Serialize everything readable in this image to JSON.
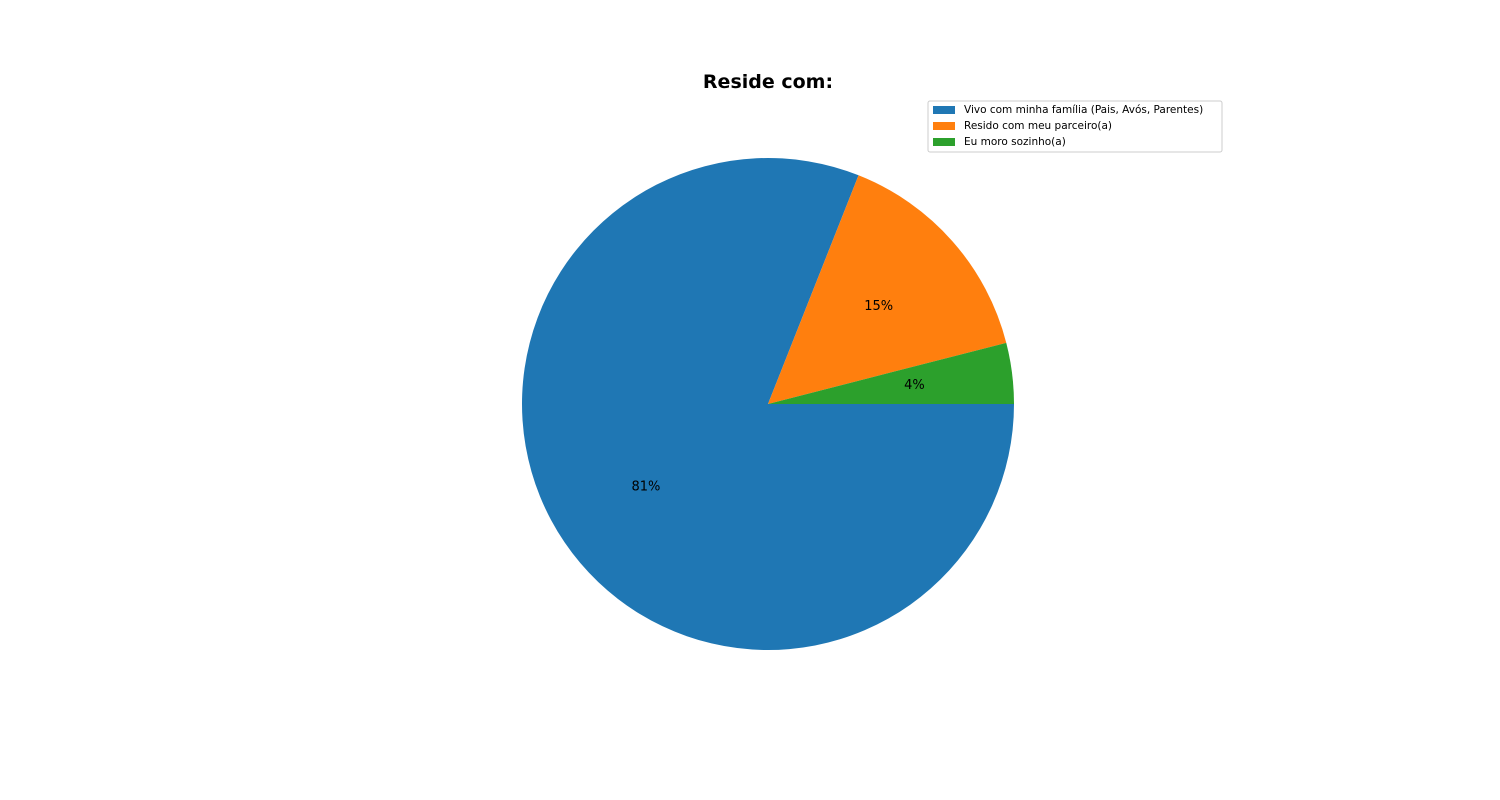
{
  "chart_data": {
    "type": "pie",
    "title": "Reside com:",
    "categories": [
      "Vivo com minha família (Pais, Avós, Parentes)",
      "Resido com meu parceiro(a)",
      "Eu moro sozinho(a)"
    ],
    "values": [
      81,
      15,
      4
    ],
    "value_labels": [
      "81%",
      "15%",
      "4%"
    ],
    "colors": [
      "#1f77b4",
      "#ff7f0e",
      "#2ca02c"
    ],
    "direction": "clockwise",
    "start": "3 o'clock",
    "legend_position": "top-right"
  }
}
